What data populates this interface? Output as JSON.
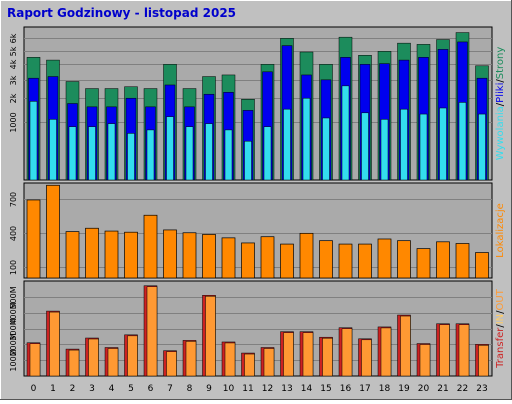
{
  "title": "Raport Godzinowy -  listopad 2025",
  "colors": {
    "background": "#c0c0c0",
    "plot_bg": "#aaaaaa",
    "title": "#0000cc",
    "strony": "#1c8c5c",
    "pliki": "#0000ee",
    "wywolania": "#33ddee",
    "lokalizacje": "#ff8800",
    "transfer": "#cc2222",
    "in": "#ffcc66",
    "out": "#ff9933"
  },
  "chart_data": [
    {
      "type": "bar",
      "panel": "hits",
      "categories": [
        "0",
        "1",
        "2",
        "3",
        "4",
        "5",
        "6",
        "7",
        "8",
        "9",
        "10",
        "11",
        "12",
        "13",
        "14",
        "15",
        "16",
        "17",
        "18",
        "19",
        "20",
        "21",
        "22",
        "23"
      ],
      "yscale": "sqrt",
      "ylim": [
        0,
        7000
      ],
      "ytick_labels": [
        "1000",
        "2k",
        "3k",
        "4k",
        "5k",
        "6k"
      ],
      "ytick_values": [
        1000,
        2000,
        3000,
        4000,
        5000,
        6000
      ],
      "ylabel_parts": [
        "Strony",
        "/",
        "Pliki",
        "/",
        "Wywolania"
      ],
      "series": [
        {
          "name": "Strony",
          "color_key": "strony",
          "values": [
            4500,
            4300,
            2900,
            2500,
            2500,
            2600,
            2500,
            4000,
            2500,
            3200,
            3300,
            1950,
            4000,
            6000,
            4900,
            4000,
            6100,
            4650,
            4950,
            5600,
            5500,
            5900,
            6500,
            3900
          ]
        },
        {
          "name": "Pliki",
          "color_key": "pliki",
          "values": [
            3100,
            3200,
            1750,
            1600,
            1600,
            2000,
            1600,
            2700,
            1600,
            2200,
            2300,
            1450,
            3500,
            5400,
            3300,
            3000,
            4500,
            4000,
            4050,
            4300,
            4500,
            5100,
            5700,
            3100
          ]
        },
        {
          "name": "Wywolania",
          "color_key": "wywolania",
          "values": [
            1850,
            1100,
            850,
            850,
            950,
            650,
            750,
            1200,
            850,
            950,
            750,
            450,
            850,
            1500,
            2000,
            1150,
            2650,
            1350,
            1100,
            1500,
            1300,
            1550,
            1800,
            1300
          ]
        }
      ]
    },
    {
      "type": "bar",
      "panel": "locations",
      "categories": [
        "0",
        "1",
        "2",
        "3",
        "4",
        "5",
        "6",
        "7",
        "8",
        "9",
        "10",
        "11",
        "12",
        "13",
        "14",
        "15",
        "16",
        "17",
        "18",
        "19",
        "20",
        "21",
        "22",
        "23"
      ],
      "ylim": [
        0,
        840
      ],
      "ytick_labels": [
        "100",
        "400",
        "700"
      ],
      "ytick_values": [
        100,
        400,
        700
      ],
      "ylabel_parts": [
        "Lokalizacje"
      ],
      "series": [
        {
          "name": "Lokalizacje",
          "color_key": "lokalizacje",
          "values": [
            690,
            820,
            410,
            440,
            415,
            405,
            555,
            425,
            400,
            385,
            355,
            310,
            365,
            300,
            395,
            330,
            300,
            300,
            345,
            330,
            260,
            320,
            305,
            225
          ]
        }
      ]
    },
    {
      "type": "bar",
      "panel": "transfer",
      "categories": [
        "0",
        "1",
        "2",
        "3",
        "4",
        "5",
        "6",
        "7",
        "8",
        "9",
        "10",
        "11",
        "12",
        "13",
        "14",
        "15",
        "16",
        "17",
        "18",
        "19",
        "20",
        "21",
        "22",
        "23"
      ],
      "ylim": [
        0,
        600
      ],
      "ytick_labels": [
        "100M",
        "200M",
        "300M",
        "400M",
        "500M"
      ],
      "ytick_values": [
        100,
        200,
        300,
        400,
        500
      ],
      "ylabel_parts": [
        "Transfer",
        "/",
        "IN",
        "/",
        "OUT"
      ],
      "series": [
        {
          "name": "Transfer",
          "color_key": "transfer",
          "values": [
            210,
            410,
            170,
            240,
            180,
            260,
            570,
            160,
            225,
            510,
            215,
            145,
            180,
            280,
            280,
            245,
            305,
            235,
            310,
            385,
            205,
            330,
            330,
            200
          ]
        },
        {
          "name": "IN",
          "color_key": "in",
          "values": [
            0,
            0,
            0,
            0,
            0,
            0,
            0,
            0,
            0,
            0,
            0,
            0,
            0,
            0,
            0,
            0,
            0,
            0,
            0,
            0,
            0,
            0,
            0,
            0
          ]
        },
        {
          "name": "OUT",
          "color_key": "out",
          "values": [
            210,
            410,
            170,
            240,
            180,
            260,
            570,
            160,
            225,
            510,
            215,
            145,
            180,
            280,
            280,
            245,
            305,
            235,
            310,
            385,
            205,
            330,
            330,
            200
          ]
        }
      ]
    }
  ]
}
